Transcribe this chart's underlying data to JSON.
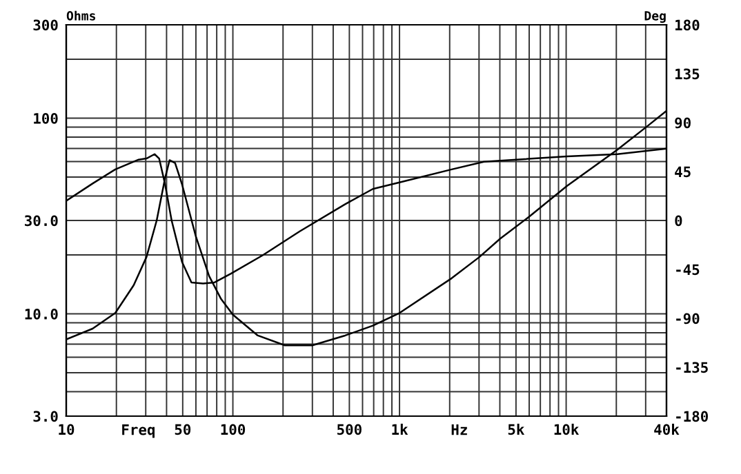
{
  "chart_data": {
    "type": "line",
    "log": "xy",
    "grid": true,
    "marker": "none",
    "line_style": "solid",
    "legend": false,
    "ylabel": "Ohms",
    "y2label": "Deg",
    "annotations": [
      "Freq",
      "Hz"
    ],
    "xlim": [
      10,
      40000
    ],
    "ylim": [
      3,
      300
    ],
    "y2lim": [
      -180,
      180
    ],
    "xticks": [
      10,
      50,
      100,
      500,
      {
        "value": 1000,
        "label": "1k"
      },
      {
        "value": 5000,
        "label": "5k"
      },
      {
        "value": 10000,
        "label": "10k"
      },
      {
        "value": 40000,
        "label": "40k"
      }
    ],
    "yticks": [
      {
        "value": 3,
        "label": "3.0"
      },
      {
        "value": 10,
        "label": "10.0"
      },
      {
        "value": 30,
        "label": "30.0"
      },
      100,
      300
    ],
    "y2ticks": [
      -180,
      -135,
      -90,
      -45,
      0,
      45,
      90,
      135,
      180
    ],
    "series": [
      {
        "color": "#000000",
        "x": [
          10,
          14.4,
          19.7,
          25.4,
          30.3,
          34.9,
          39.1,
          41.7,
          45,
          49.5,
          60,
          72,
          85,
          100,
          141,
          205,
          300,
          472,
          692,
          1000,
          2056,
          3013,
          4015,
          6070,
          10100,
          20300,
          30700,
          40000
        ],
        "values": [
          7.4,
          8.4,
          10.1,
          14,
          19.5,
          30,
          49,
          61,
          59,
          46,
          24.8,
          15.6,
          11.9,
          9.9,
          7.75,
          6.9,
          6.9,
          7.75,
          8.7,
          10.1,
          15.2,
          19.5,
          24.2,
          31.6,
          45,
          69,
          91,
          109
        ]
      },
      {
        "color": "#000000",
        "axis": "y2",
        "x": [
          10,
          14.4,
          19.7,
          27.2,
          30.3,
          33.9,
          36.1,
          39.1,
          42.9,
          49.5,
          56.4,
          66.2,
          77.6,
          97,
          151,
          252,
          472,
          692,
          1000,
          2056,
          3210,
          10100,
          20300,
          40000
        ],
        "values": [
          18,
          34,
          47,
          56,
          57,
          61,
          57,
          34,
          0,
          -38,
          -57,
          -58,
          -57,
          -49,
          -32,
          -10,
          15,
          29,
          35,
          47,
          54,
          59,
          61,
          66
        ]
      }
    ]
  }
}
